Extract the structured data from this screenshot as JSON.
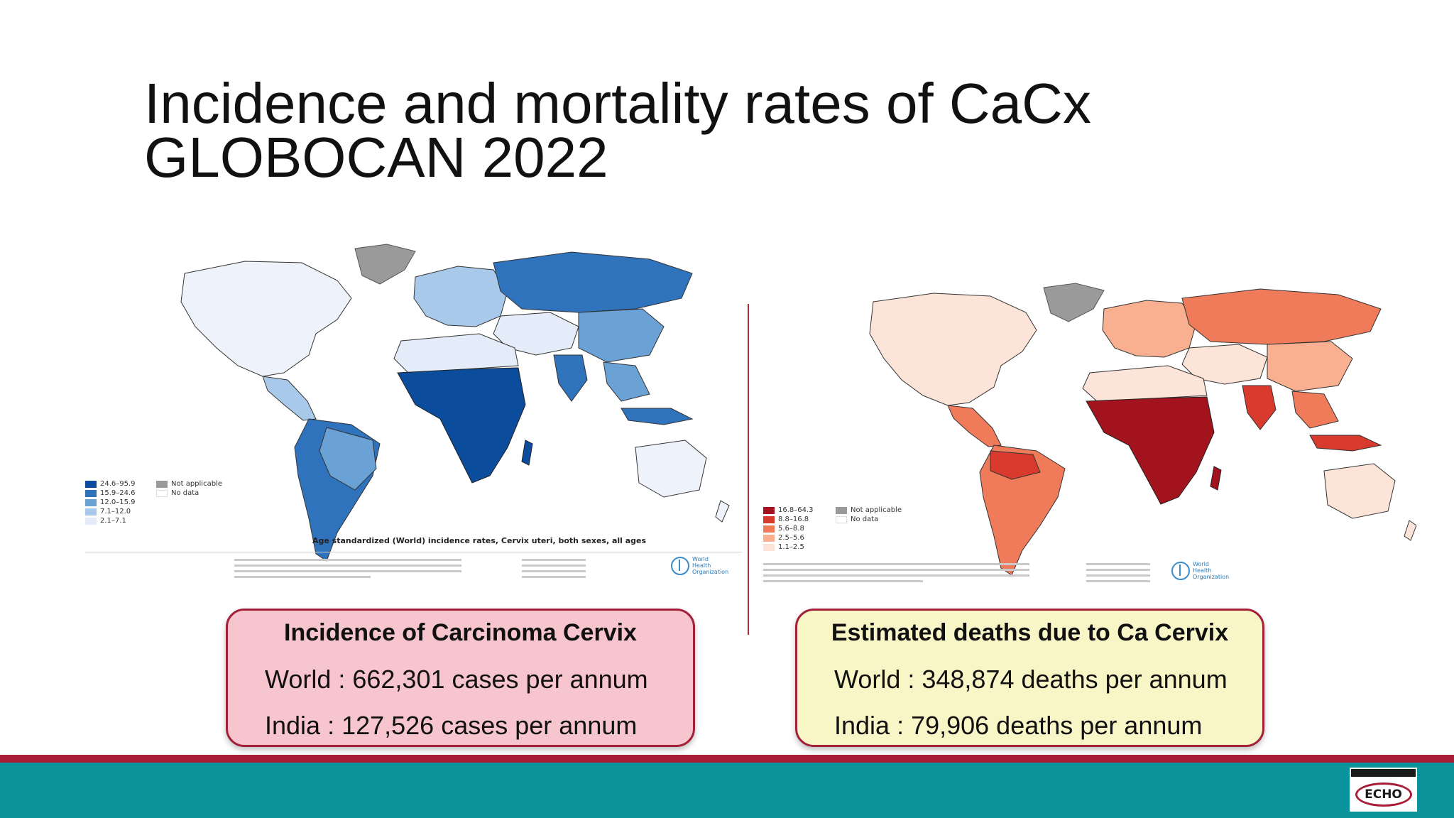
{
  "slide": {
    "title_line1": "Incidence and mortality rates of CaCx",
    "title_line2": "GLOBOCAN 2022"
  },
  "incidence_map": {
    "caption": "Age standardized (World) incidence rates, Cervix uteri, both sexes, all ages",
    "legend": [
      {
        "label": "24.6–95.9",
        "color": "#0b4c9c"
      },
      {
        "label": "15.9–24.6",
        "color": "#2f73bd"
      },
      {
        "label": "12.0–15.9",
        "color": "#6ba2d6"
      },
      {
        "label": "7.1–12.0",
        "color": "#a9c9ea"
      },
      {
        "label": "2.1–7.1",
        "color": "#e3ecf8"
      }
    ],
    "not_applicable_label": "Not applicable",
    "no_data_label": "No data",
    "not_applicable_color": "#9a9a9a",
    "no_data_color": "#ffffff",
    "who_name": "World Health Organization"
  },
  "mortality_map": {
    "legend": [
      {
        "label": "16.8–64.3",
        "color": "#a3131d"
      },
      {
        "label": "8.8–16.8",
        "color": "#d83a2e"
      },
      {
        "label": "5.6–8.8",
        "color": "#f07b5a"
      },
      {
        "label": "2.5–5.6",
        "color": "#f8b090"
      },
      {
        "label": "1.1–2.5",
        "color": "#fde4d8"
      }
    ],
    "not_applicable_label": "Not applicable",
    "no_data_label": "No data",
    "not_applicable_color": "#9a9a9a",
    "no_data_color": "#ffffff",
    "who_name": "World Health Organization"
  },
  "incidence_card": {
    "title": "Incidence of Carcinoma Cervix",
    "world": "World : 662,301 cases per annum",
    "india": "India : 127,526 cases per annum",
    "bg_color": "#f7c5cd"
  },
  "deaths_card": {
    "title": "Estimated deaths due to Ca Cervix",
    "world": "World : 348,874 deaths per annum",
    "india": "India : 79,906 deaths per annum",
    "bg_color": "#f8f5c7"
  },
  "footer": {
    "logo_text": "ECHO",
    "bar_color": "#0a939b",
    "rule_color": "#a81c36"
  }
}
